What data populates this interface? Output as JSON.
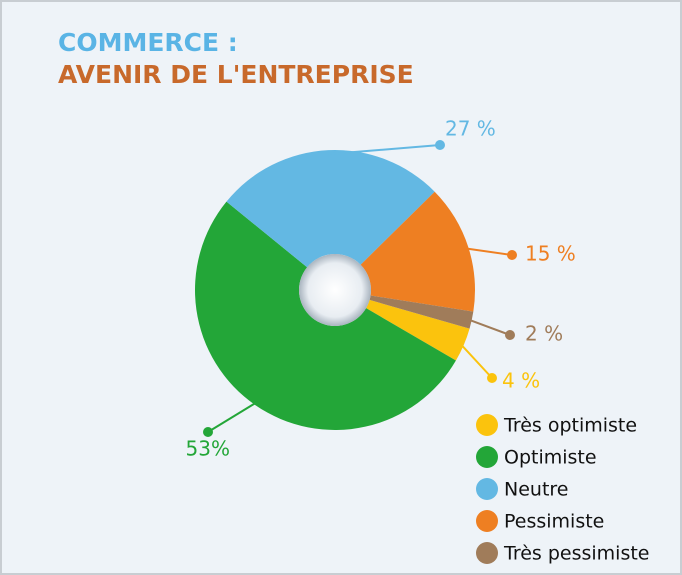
{
  "chart_data": {
    "type": "donut",
    "title": "COMMERCE :",
    "subtitle": "AVENIR DE L'ENTREPRISE",
    "categories": [
      "Très optimiste",
      "Optimiste",
      "Neutre",
      "Pessimiste",
      "Très pessimiste"
    ],
    "values": [
      4,
      53,
      27,
      15,
      2
    ],
    "value_labels": [
      "4 %",
      "53%",
      "27 %",
      "15 %",
      "2 %"
    ],
    "colors": [
      "#fbc30d",
      "#23a638",
      "#63b8e3",
      "#ee7f22",
      "#a07c5a"
    ],
    "legend": "bottom-right"
  }
}
